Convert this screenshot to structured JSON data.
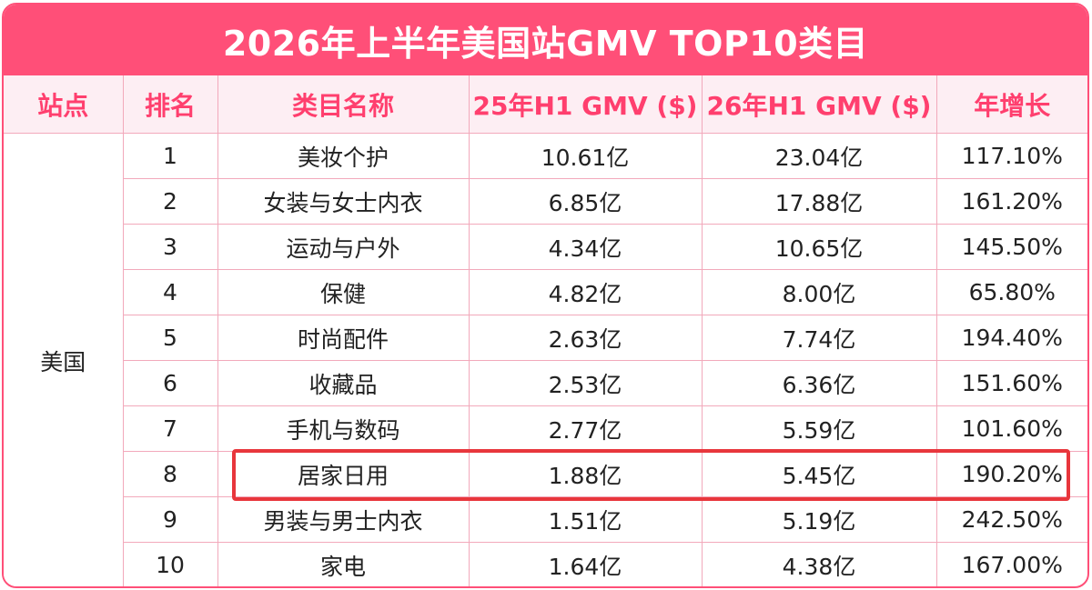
{
  "title": "2026年上半年美国站GMV TOP10类目",
  "headers": {
    "site": "站点",
    "rank": "排名",
    "category": "类目名称",
    "gmv25": "25年H1 GMV ($)",
    "gmv26": "26年H1 GMV ($)",
    "growth": "年增长"
  },
  "site_value": "美国",
  "rows": [
    {
      "rank": "1",
      "category": "美妆个护",
      "gmv25": "10.61亿",
      "gmv26": "23.04亿",
      "growth": "117.10%"
    },
    {
      "rank": "2",
      "category": "女装与女士内衣",
      "gmv25": "6.85亿",
      "gmv26": "17.88亿",
      "growth": "161.20%"
    },
    {
      "rank": "3",
      "category": "运动与户外",
      "gmv25": "4.34亿",
      "gmv26": "10.65亿",
      "growth": "145.50%"
    },
    {
      "rank": "4",
      "category": "保健",
      "gmv25": "4.82亿",
      "gmv26": "8.00亿",
      "growth": "65.80%"
    },
    {
      "rank": "5",
      "category": "时尚配件",
      "gmv25": "2.63亿",
      "gmv26": "7.74亿",
      "growth": "194.40%"
    },
    {
      "rank": "6",
      "category": "收藏品",
      "gmv25": "2.53亿",
      "gmv26": "6.36亿",
      "growth": "151.60%"
    },
    {
      "rank": "7",
      "category": "手机与数码",
      "gmv25": "2.77亿",
      "gmv26": "5.59亿",
      "growth": "101.60%"
    },
    {
      "rank": "8",
      "category": "居家日用",
      "gmv25": "1.88亿",
      "gmv26": "5.45亿",
      "growth": "190.20%"
    },
    {
      "rank": "9",
      "category": "男装与男士内衣",
      "gmv25": "1.51亿",
      "gmv26": "5.19亿",
      "growth": "242.50%"
    },
    {
      "rank": "10",
      "category": "家电",
      "gmv25": "1.64亿",
      "gmv26": "4.38亿",
      "growth": "167.00%"
    }
  ],
  "highlighted_rank": "8",
  "colors": {
    "accent": "#ff4f78",
    "header_bg": "#fdeef3",
    "header_text": "#ff3f6e",
    "highlight_box": "#e8363c"
  }
}
